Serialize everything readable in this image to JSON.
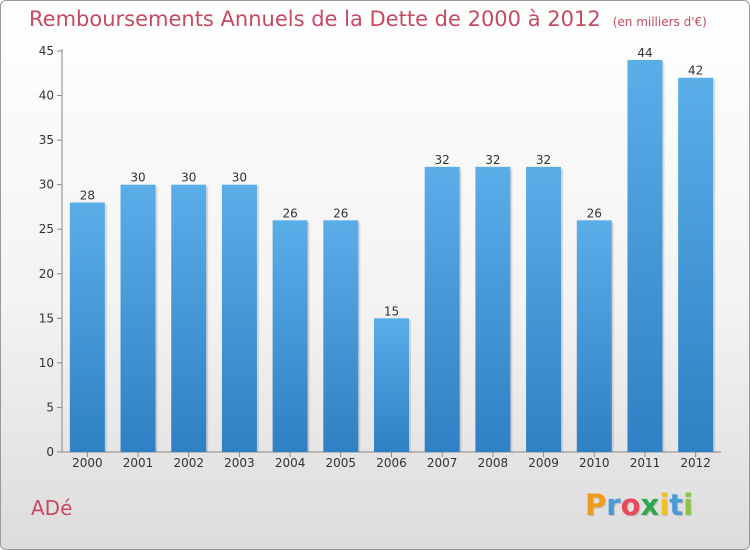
{
  "title": "Remboursements Annuels de la Dette de 2000 à 2012",
  "unit": "(en milliers d'€)",
  "commune": "ADé",
  "logo": {
    "letters": [
      "P",
      "r",
      "o",
      "x",
      "i",
      "t",
      "i"
    ],
    "colors": [
      "#f29a1c",
      "#4a9ad8",
      "#e94a5a",
      "#2ea84a",
      "#f2c21c",
      "#4a9ad8",
      "#8cc43c"
    ]
  },
  "chart_data": {
    "type": "bar",
    "categories": [
      "2000",
      "2001",
      "2002",
      "2003",
      "2004",
      "2005",
      "2006",
      "2007",
      "2008",
      "2009",
      "2010",
      "2011",
      "2012"
    ],
    "values": [
      28,
      30,
      30,
      30,
      26,
      26,
      15,
      32,
      32,
      32,
      26,
      44,
      42
    ],
    "ylim": [
      0,
      45
    ],
    "yticks": [
      0,
      5,
      10,
      15,
      20,
      25,
      30,
      35,
      40,
      45
    ],
    "grid": false,
    "bar_color": "#4a9ee0"
  }
}
